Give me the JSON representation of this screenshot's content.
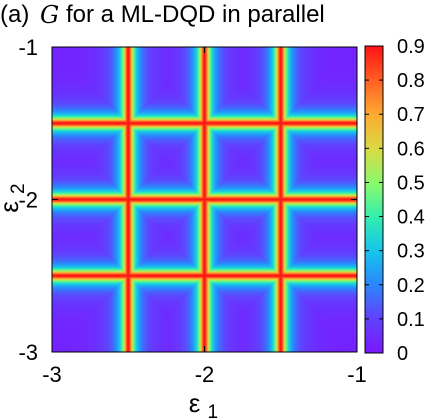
{
  "chart_data": {
    "type": "heatmap",
    "title_prefix": "(a)",
    "title_variable": "G",
    "title_rest": "for a ML-DQD in parallel",
    "xlabel": "ε",
    "xlabel_sub": "1",
    "ylabel": "ε",
    "ylabel_sub": "2",
    "xlim": [
      -3,
      -1
    ],
    "ylim": [
      -3,
      -1
    ],
    "x_ticks": [
      -3,
      -2,
      -1
    ],
    "y_ticks": [
      -1,
      -2,
      -3
    ],
    "x_tick_labels": [
      "-3",
      "-2",
      "-1"
    ],
    "y_tick_labels": [
      "-1",
      "-2",
      "-3"
    ],
    "colorbar_range": [
      0,
      0.9
    ],
    "colorbar_ticks": [
      0,
      0.1,
      0.2,
      0.3,
      0.4,
      0.5,
      0.6,
      0.7,
      0.8,
      0.9
    ],
    "colorbar_tick_labels": [
      "0",
      "0.1",
      "0.2",
      "0.3",
      "0.4",
      "0.5",
      "0.6",
      "0.7",
      "0.8",
      "0.9"
    ],
    "colormap": "rainbow (purple → blue → cyan → green → yellow → orange → red)",
    "resonance_lines_eps1": [
      -2.5,
      -2.0,
      -1.5
    ],
    "resonance_lines_eps2": [
      -1.5,
      -2.0,
      -2.5
    ],
    "line_peak_value": 0.9,
    "background_value": 0.02,
    "grid": false
  }
}
